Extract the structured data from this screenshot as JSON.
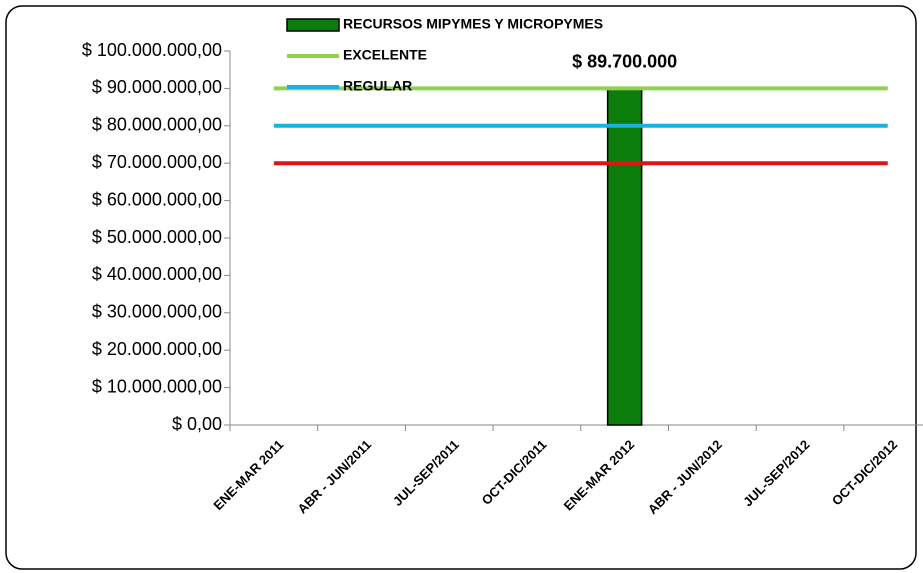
{
  "chart_data": {
    "type": "bar",
    "categories": [
      "ENE-MAR 2011",
      "ABR - JUN/2011",
      "JUL-SEP/2011",
      "OCT-DIC/2011",
      "ENE-MAR 2012",
      "ABR - JUN/2012",
      "JUL-SEP/2012",
      "OCT-DIC/2012"
    ],
    "series": [
      {
        "name": "RECURSOS MIPYMES Y MICROPYMES",
        "type": "bar",
        "color": "#0b7d0b",
        "values": [
          null,
          null,
          null,
          null,
          89700000,
          null,
          null,
          null
        ],
        "value_labels": [
          null,
          null,
          null,
          null,
          "$ 89.700.000",
          null,
          null,
          null
        ]
      },
      {
        "name": "EXCELENTE",
        "type": "line",
        "color": "#92d050",
        "values": [
          90000000,
          90000000,
          90000000,
          90000000,
          90000000,
          90000000,
          90000000,
          90000000
        ]
      },
      {
        "name": "REGULAR",
        "type": "line",
        "color": "#1ab0e0",
        "values": [
          80000000,
          80000000,
          80000000,
          80000000,
          80000000,
          80000000,
          80000000,
          80000000
        ]
      },
      {
        "type": "line",
        "color": "#e01414",
        "values": [
          70000000,
          70000000,
          70000000,
          70000000,
          70000000,
          70000000,
          70000000,
          70000000
        ]
      }
    ],
    "ylim": [
      0,
      100000000
    ],
    "yticks": [
      {
        "value": 0,
        "label": "$ 0,00"
      },
      {
        "value": 10000000,
        "label": "$ 10.000.000,00"
      },
      {
        "value": 20000000,
        "label": "$ 20.000.000,00"
      },
      {
        "value": 30000000,
        "label": "$ 30.000.000,00"
      },
      {
        "value": 40000000,
        "label": "$ 40.000.000,00"
      },
      {
        "value": 50000000,
        "label": "$ 50.000.000,00"
      },
      {
        "value": 60000000,
        "label": "$ 60.000.000,00"
      },
      {
        "value": 70000000,
        "label": "$ 70.000.000,00"
      },
      {
        "value": 80000000,
        "label": "$ 80.000.000,00"
      },
      {
        "value": 90000000,
        "label": "$ 90.000.000,00"
      },
      {
        "value": 100000000,
        "label": "$ 100.000.000,00"
      }
    ],
    "legend": "top"
  }
}
